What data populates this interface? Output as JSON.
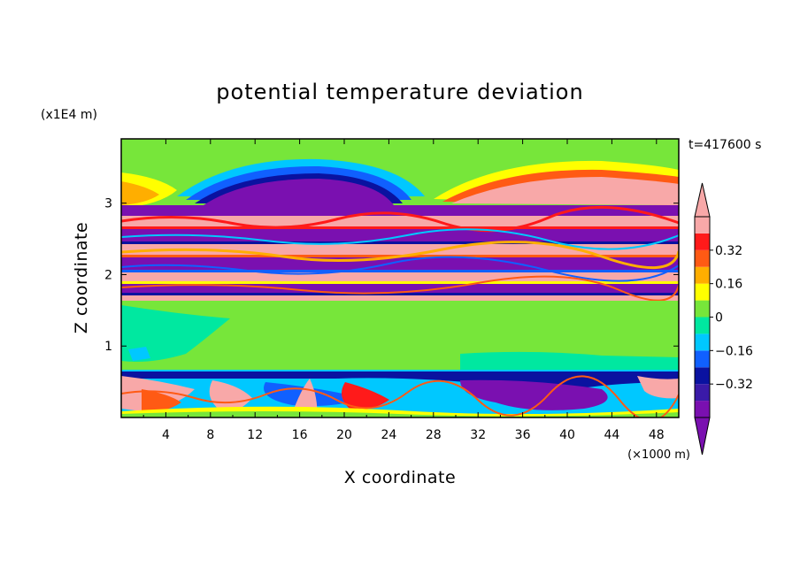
{
  "chart_data": {
    "type": "heatmap",
    "title": "potential temperature deviation",
    "xlabel": "X coordinate",
    "ylabel": "Z coordinate",
    "x_unit": "(×1000 m)",
    "y_unit": "(x1E4 m)",
    "time_label": "t=417600 s",
    "xlim": [
      0,
      50
    ],
    "ylim": [
      0,
      3.9
    ],
    "x_ticks": [
      4,
      8,
      12,
      16,
      20,
      24,
      28,
      32,
      36,
      40,
      44,
      48
    ],
    "x_tick_labels": [
      "4",
      "8",
      "12",
      "16",
      "20",
      "24",
      "28",
      "32",
      "36",
      "40",
      "44",
      "48"
    ],
    "y_ticks": [
      1,
      2,
      3
    ],
    "y_tick_labels": [
      "1",
      "2",
      "3"
    ],
    "colorbar": {
      "levels": [
        -0.48,
        -0.4,
        -0.32,
        -0.24,
        -0.16,
        -0.08,
        0,
        0.08,
        0.16,
        0.24,
        0.32,
        0.4
      ],
      "tick_values": [
        0.32,
        0.16,
        0,
        -0.16,
        -0.32
      ],
      "tick_labels": [
        "0.32",
        "0.16",
        "0",
        "−0.16",
        "−0.32"
      ],
      "colors": [
        "#7a10b0",
        "#3a1aa8",
        "#0a12a0",
        "#1060ff",
        "#00c8ff",
        "#00e8a0",
        "#77e63a",
        "#ffff00",
        "#ffae00",
        "#ff5a14",
        "#ff1a1a",
        "#f8a8a8"
      ],
      "extend": "both"
    },
    "regions": [
      {
        "x": [
          0,
          50
        ],
        "z": [
          0.7,
          1.7
        ],
        "value": 0.02
      },
      {
        "x": [
          0,
          50
        ],
        "z": [
          3.4,
          3.9
        ],
        "value": 0.03
      },
      {
        "x": [
          10,
          24
        ],
        "z": [
          3.05,
          3.35
        ],
        "value": -0.45
      },
      {
        "x": [
          26,
          50
        ],
        "z": [
          3.05,
          3.3
        ],
        "value": 0.42
      },
      {
        "x": [
          0,
          50
        ],
        "z": [
          2.8,
          3.0
        ],
        "value": 0.42
      },
      {
        "x": [
          0,
          50
        ],
        "z": [
          2.55,
          2.75
        ],
        "value": -0.45
      },
      {
        "x": [
          0,
          50
        ],
        "z": [
          2.3,
          2.5
        ],
        "value": 0.42
      },
      {
        "x": [
          0,
          50
        ],
        "z": [
          2.05,
          2.25
        ],
        "value": -0.45
      },
      {
        "x": [
          0,
          50
        ],
        "z": [
          1.9,
          2.05
        ],
        "value": 0.42
      },
      {
        "x": [
          0,
          50
        ],
        "z": [
          1.7,
          1.9
        ],
        "value": -0.3
      },
      {
        "x": [
          0,
          50
        ],
        "z": [
          0,
          0.7
        ],
        "value": -0.2
      }
    ]
  }
}
